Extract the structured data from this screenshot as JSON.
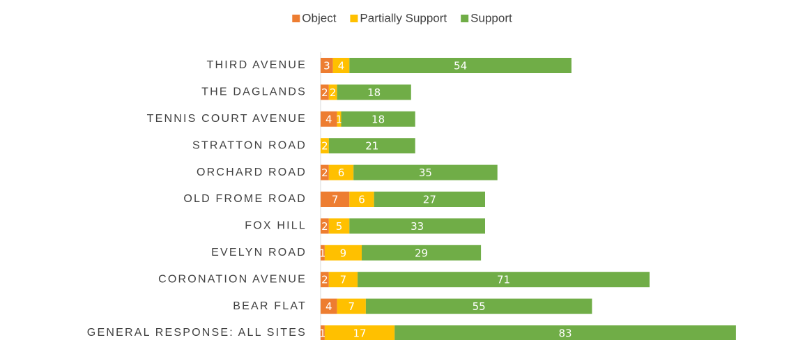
{
  "chart_data": {
    "type": "bar",
    "orientation": "horizontal",
    "stacked": true,
    "categories": [
      "THIRD AVENUE",
      "THE DAGLANDS",
      "TENNIS COURT AVENUE",
      "STRATTON ROAD",
      "ORCHARD ROAD",
      "OLD FROME ROAD",
      "FOX HILL",
      "EVELYN ROAD",
      "CORONATION AVENUE",
      "BEAR FLAT",
      "GENERAL RESPONSE: ALL SITES"
    ],
    "series": [
      {
        "name": "Object",
        "color": "#ED7D31",
        "values": [
          3,
          2,
          4,
          0,
          2,
          7,
          2,
          1,
          2,
          4,
          1
        ]
      },
      {
        "name": "Partially Support",
        "color": "#FFC000",
        "values": [
          4,
          2,
          1,
          2,
          6,
          6,
          5,
          9,
          7,
          7,
          17
        ]
      },
      {
        "name": "Support",
        "color": "#70AD47",
        "values": [
          54,
          18,
          18,
          21,
          35,
          27,
          33,
          29,
          71,
          55,
          83
        ]
      }
    ],
    "legend": "top"
  }
}
